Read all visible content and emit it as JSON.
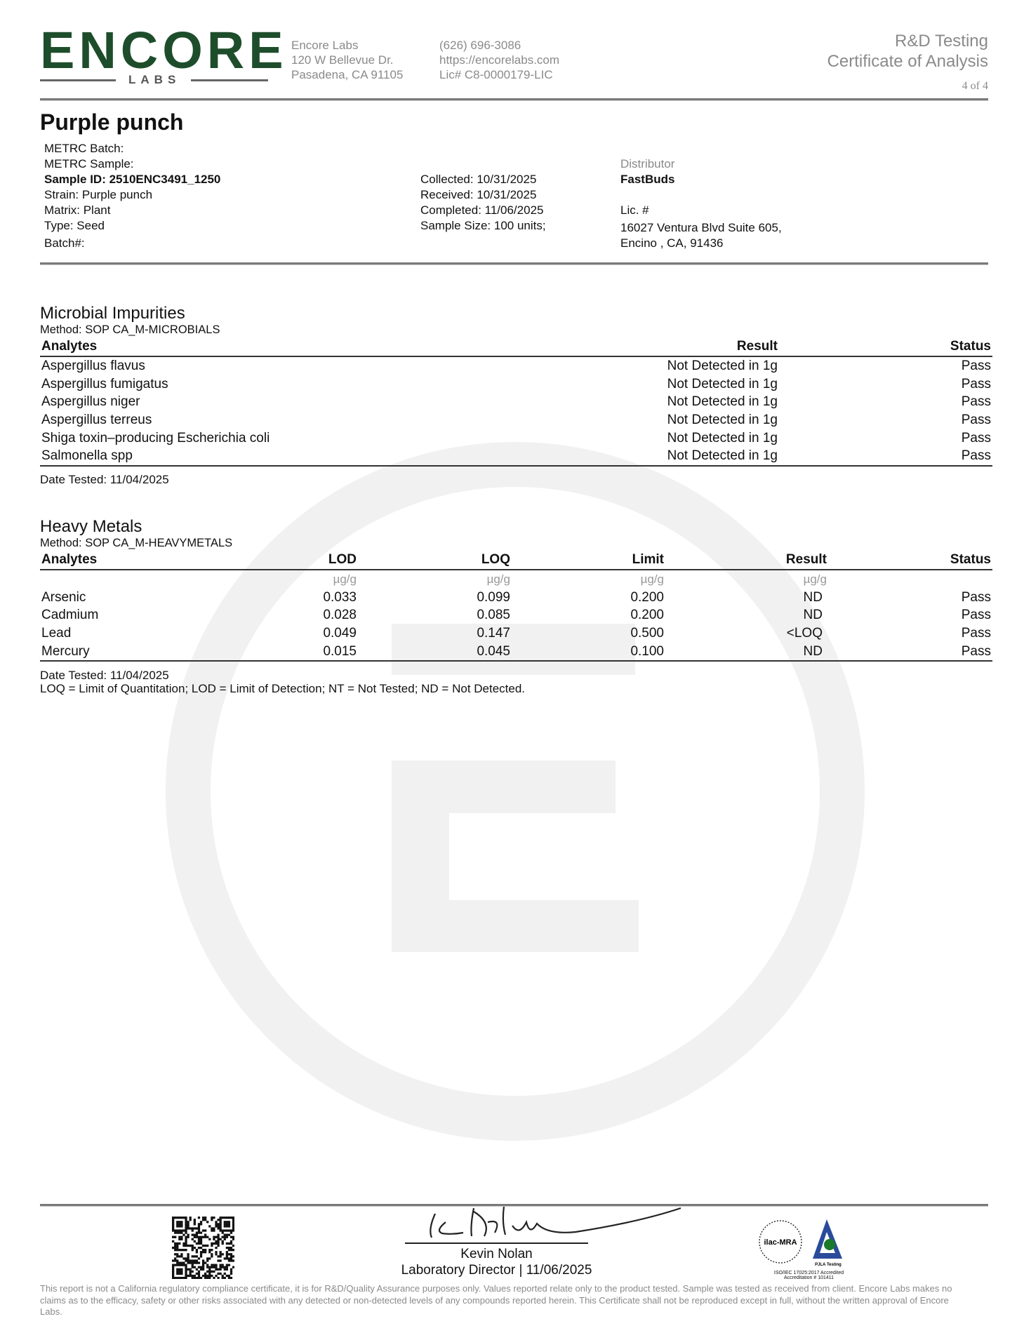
{
  "header": {
    "logo_text": "ENCORE",
    "logo_sub": "LABS",
    "logo_color": "#1e4d2b",
    "lab_name": "Encore Labs",
    "address1": "120 W Bellevue Dr.",
    "address2": "Pasadena, CA 91105",
    "phone": "(626) 696-3086",
    "website": "https://encorelabs.com",
    "license": "Lic# C8-0000179-LIC",
    "doc_type": "R&D Testing",
    "doc_title": "Certificate of Analysis",
    "page": "4 of 4"
  },
  "sample": {
    "title": "Purple punch",
    "metrc_batch": "METRC Batch:",
    "metrc_sample": "METRC Sample:",
    "sample_id": "Sample ID: 2510ENC3491_1250",
    "strain": "Strain: Purple punch",
    "matrix": "Matrix: Plant",
    "type": "Type: Seed",
    "batch": "Batch#:",
    "collected": "Collected: 10/31/2025",
    "received": "Received: 10/31/2025",
    "completed": "Completed: 11/06/2025",
    "sample_size": "Sample Size: 100 units;",
    "distributor_label": "Distributor",
    "distributor": "FastBuds",
    "lic": "Lic. #",
    "dist_address1": "16027 Ventura Blvd Suite 605,",
    "dist_address2": "Encino , CA, 91436"
  },
  "microbial": {
    "title": "Microbial Impurities",
    "method": "Method: SOP CA_M-MICROBIALS",
    "columns": [
      "Analytes",
      "Result",
      "Status"
    ],
    "rows": [
      [
        "Aspergillus flavus",
        "Not Detected in 1g",
        "Pass"
      ],
      [
        "Aspergillus fumigatus",
        "Not Detected in 1g",
        "Pass"
      ],
      [
        "Aspergillus niger",
        "Not Detected in 1g",
        "Pass"
      ],
      [
        "Aspergillus terreus",
        "Not Detected in 1g",
        "Pass"
      ],
      [
        "Shiga toxin–producing Escherichia coli",
        "Not Detected in 1g",
        "Pass"
      ],
      [
        "Salmonella spp",
        "Not Detected in 1g",
        "Pass"
      ]
    ],
    "date_tested": "Date Tested: 11/04/2025"
  },
  "metals": {
    "title": "Heavy Metals",
    "method": "Method: SOP CA_M-HEAVYMETALS",
    "columns": [
      "Analytes",
      "LOD",
      "LOQ",
      "Limit",
      "Result",
      "Status"
    ],
    "units": [
      "",
      "µg/g",
      "µg/g",
      "µg/g",
      "µg/g",
      ""
    ],
    "rows": [
      [
        "Arsenic",
        "0.033",
        "0.099",
        "0.200",
        "ND",
        "Pass"
      ],
      [
        "Cadmium",
        "0.028",
        "0.085",
        "0.200",
        "ND",
        "Pass"
      ],
      [
        "Lead",
        "0.049",
        "0.147",
        "0.500",
        "<LOQ",
        "Pass"
      ],
      [
        "Mercury",
        "0.015",
        "0.045",
        "0.100",
        "ND",
        "Pass"
      ]
    ],
    "date_tested": "Date Tested: 11/04/2025",
    "legend": "LOQ = Limit of Quantitation; LOD = Limit of Detection; NT = Not Tested; ND = Not Detected."
  },
  "footer": {
    "signer": "Kevin Nolan",
    "signer_title": "Laboratory Director | 11/06/2025",
    "accreditation_logo1": "ilac-MRA",
    "accreditation_logo2": "PJLA Testing",
    "accreditation_text1": "ISO/IEC 17025:2017 Accredited",
    "accreditation_text2": "Accreditation # 101411",
    "disclaimer": "This report is not a California regulatory compliance certificate, it is for R&D/Quality Assurance purposes only. Values reported relate only to the product tested. Sample was tested as received from client. Encore Labs makes no claims as to the efficacy, safety or other risks associated with any detected or non-detected levels of any compounds reported herein. This Certificate shall not be reproduced except in full, without the written approval of Encore Labs."
  }
}
